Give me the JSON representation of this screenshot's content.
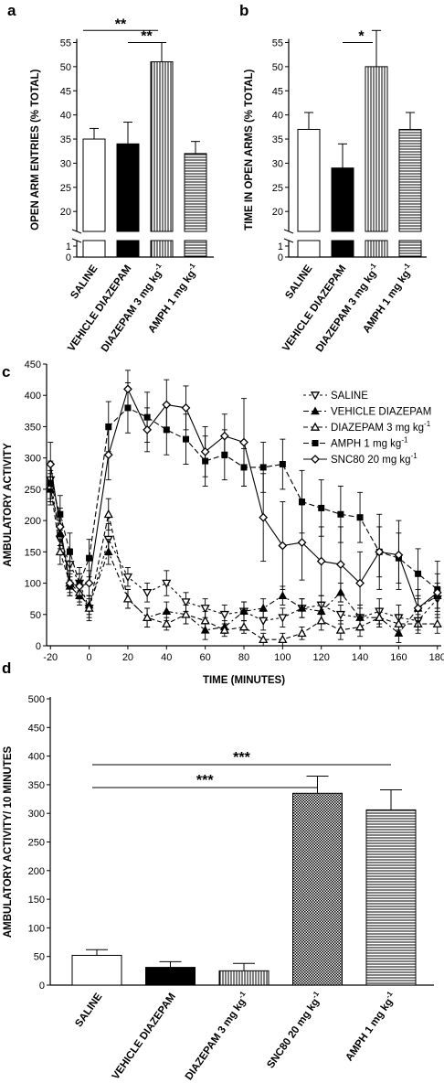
{
  "chart_data": [
    {
      "panel": "a",
      "type": "bar",
      "ylabel": "OPEN ARM ENTRIES (% TOTAL)",
      "ylim": [
        0,
        57
      ],
      "axis_break": [
        1,
        17
      ],
      "yticks": [
        "0",
        "1",
        "20",
        "25",
        "30",
        "35",
        "40",
        "45",
        "50",
        "55"
      ],
      "categories": [
        "SALINE",
        "VEHICLE DIAZEPAM",
        "DIAZEPAM 3 mg kg-1",
        "AMPH 1 mg kg-1"
      ],
      "category_parts": [
        [
          "SALINE",
          ""
        ],
        [
          "VEHICLE DIAZEPAM",
          ""
        ],
        [
          "DIAZEPAM 3 mg kg",
          "-1"
        ],
        [
          "AMPH 1 mg kg",
          "-1"
        ]
      ],
      "values": [
        35,
        34,
        51,
        32
      ],
      "errors": [
        2.2,
        4.5,
        4,
        2.5
      ],
      "fills": [
        "white",
        "black",
        "vlines",
        "hlines"
      ],
      "significance": [
        {
          "from": 0,
          "to": 2,
          "label": "**",
          "y": 57.5
        },
        {
          "from": 1,
          "to": 2,
          "label": "**",
          "y": 55
        }
      ]
    },
    {
      "panel": "b",
      "type": "bar",
      "ylabel": "TIME IN OPEN ARMS (% TOTAL)",
      "ylim": [
        0,
        57
      ],
      "axis_break": [
        1,
        17
      ],
      "yticks": [
        "0",
        "1",
        "20",
        "25",
        "30",
        "35",
        "40",
        "45",
        "50",
        "55"
      ],
      "categories": [
        "SALINE",
        "VEHICLE DIAZEPAM",
        "DIAZEPAM 3 mg kg-1",
        "AMPH 1 mg kg-1"
      ],
      "category_parts": [
        [
          "SALINE",
          ""
        ],
        [
          "VEHICLE DIAZEPAM",
          ""
        ],
        [
          "DIAZEPAM 3 mg kg",
          "-1"
        ],
        [
          "AMPH 1 mg kg",
          "-1"
        ]
      ],
      "values": [
        37,
        29,
        50,
        37
      ],
      "errors": [
        3.5,
        5,
        7.5,
        3.5
      ],
      "fills": [
        "white",
        "black",
        "vlines",
        "hlines"
      ],
      "significance": [
        {
          "from": 1,
          "to": 2,
          "label": "*",
          "y": 55
        }
      ]
    },
    {
      "panel": "c",
      "type": "line",
      "xlabel": "TIME (MINUTES)",
      "ylabel": "AMBULATORY ACTIVITY",
      "xlim": [
        -22,
        182
      ],
      "ylim": [
        0,
        450
      ],
      "xticks": [
        -20,
        0,
        20,
        40,
        60,
        80,
        100,
        120,
        140,
        160,
        180
      ],
      "yticks": [
        0,
        50,
        100,
        150,
        200,
        250,
        300,
        350,
        400,
        450
      ],
      "x": [
        -20,
        -15,
        -10,
        -5,
        0,
        10,
        20,
        30,
        40,
        50,
        60,
        70,
        80,
        90,
        100,
        110,
        120,
        130,
        140,
        150,
        160,
        170,
        180
      ],
      "series": [
        {
          "name": "SALINE",
          "name_sup": "",
          "marker": "tri-down-open",
          "dash": "3,3",
          "values": [
            265,
            170,
            130,
            100,
            60,
            170,
            110,
            85,
            100,
            70,
            60,
            50,
            55,
            40,
            45,
            60,
            65,
            50,
            45,
            55,
            45,
            40,
            75
          ],
          "errors": [
            30,
            15,
            25,
            15,
            20,
            25,
            15,
            15,
            20,
            15,
            15,
            15,
            15,
            15,
            15,
            15,
            15,
            15,
            20,
            20,
            20,
            15,
            15
          ]
        },
        {
          "name": "VEHICLE DIAZEPAM",
          "name_sup": "",
          "marker": "tri-up-filled",
          "dash": "6,3,2,3",
          "values": [
            250,
            180,
            95,
            80,
            65,
            150,
            75,
            45,
            55,
            50,
            25,
            30,
            55,
            60,
            80,
            60,
            55,
            85,
            45,
            45,
            20,
            60,
            80
          ],
          "errors": [
            25,
            20,
            15,
            15,
            15,
            20,
            15,
            15,
            15,
            15,
            15,
            10,
            15,
            15,
            15,
            15,
            15,
            15,
            15,
            15,
            15,
            20,
            20
          ]
        },
        {
          "name": "DIAZEPAM 3 mg kg",
          "name_sup": "-1",
          "marker": "tri-up-open",
          "dash": "5,3",
          "values": [
            255,
            150,
            100,
            85,
            60,
            210,
            75,
            45,
            35,
            50,
            40,
            25,
            30,
            10,
            10,
            20,
            40,
            25,
            30,
            45,
            35,
            35,
            35
          ],
          "errors": [
            25,
            20,
            15,
            15,
            15,
            25,
            15,
            15,
            10,
            15,
            15,
            10,
            10,
            10,
            10,
            10,
            15,
            15,
            15,
            15,
            15,
            15,
            15
          ]
        },
        {
          "name": "AMPH 1 mg kg",
          "name_sup": "-1",
          "marker": "square-filled",
          "dash": "6,3",
          "values": [
            260,
            210,
            150,
            100,
            140,
            350,
            380,
            365,
            345,
            330,
            295,
            305,
            285,
            285,
            290,
            230,
            220,
            210,
            205,
            150,
            140,
            115,
            90
          ],
          "errors": [
            30,
            30,
            30,
            25,
            30,
            40,
            40,
            40,
            40,
            40,
            40,
            40,
            30,
            40,
            40,
            50,
            45,
            45,
            40,
            40,
            40,
            40,
            45
          ]
        },
        {
          "name": "SNC80 20 mg kg",
          "name_sup": "-1",
          "marker": "diamond-open",
          "dash": "",
          "values": [
            290,
            190,
            100,
            95,
            100,
            305,
            410,
            345,
            385,
            380,
            310,
            335,
            325,
            205,
            160,
            165,
            135,
            130,
            100,
            150,
            145,
            60,
            85
          ],
          "errors": [
            35,
            30,
            20,
            20,
            20,
            40,
            30,
            35,
            40,
            35,
            40,
            35,
            70,
            70,
            70,
            60,
            55,
            60,
            50,
            60,
            55,
            30,
            30
          ]
        }
      ]
    },
    {
      "panel": "d",
      "type": "bar",
      "ylabel": "AMBULATORY ACTIVITY/ 10 MINUTES",
      "ylim": [
        0,
        500
      ],
      "yticks": [
        0,
        50,
        100,
        150,
        200,
        250,
        300,
        350,
        400,
        450,
        500
      ],
      "categories": [
        "SALINE",
        "VEHICLE DIAZEPAM",
        "DIAZEPAM 3 mg kg-1",
        "SNC80 20 mg kg-1",
        "AMPH 1 mg kg-1"
      ],
      "category_parts": [
        [
          "SALINE",
          ""
        ],
        [
          "VEHICLE DIAZEPAM",
          ""
        ],
        [
          "DIAZEPAM 3 mg kg",
          "-1"
        ],
        [
          "SNC80 20 mg kg",
          "-1"
        ],
        [
          "AMPH 1 mg kg",
          "-1"
        ]
      ],
      "values": [
        52,
        31,
        25,
        335,
        306
      ],
      "errors": [
        10,
        10,
        13,
        30,
        35
      ],
      "fills": [
        "white",
        "black",
        "vlines",
        "checker",
        "hlines"
      ],
      "significance": [
        {
          "from": 0,
          "to": 4,
          "label": "***",
          "y": 385
        },
        {
          "from": 0,
          "to": 3,
          "label": "***",
          "y": 345
        }
      ]
    }
  ]
}
